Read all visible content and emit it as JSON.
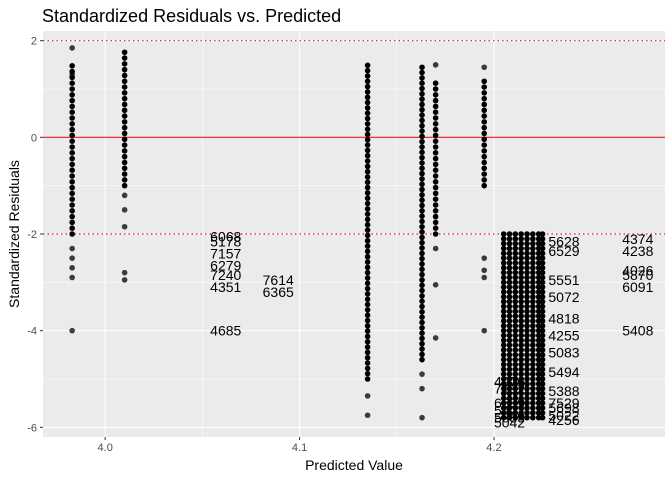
{
  "chart_data": {
    "type": "scatter",
    "title": "Standardized Residuals vs. Predicted",
    "xlabel": "Predicted Value",
    "ylabel": "Standardized Residuals",
    "xlim": [
      3.968,
      4.288
    ],
    "ylim": [
      -6.2,
      2.2
    ],
    "xticks": [
      {
        "value": 4.0,
        "label": "4.0"
      },
      {
        "value": 4.1,
        "label": "4.1"
      },
      {
        "value": 4.2,
        "label": "4.2"
      }
    ],
    "yticks": [
      {
        "value": 2,
        "label": "2"
      },
      {
        "value": 0,
        "label": "0"
      },
      {
        "value": -2,
        "label": "-2"
      },
      {
        "value": -4,
        "label": "-4"
      },
      {
        "value": -6,
        "label": "-6"
      }
    ],
    "reference_lines": [
      {
        "y": 0,
        "style": "solid",
        "color": "#e41a1c"
      },
      {
        "y": 2,
        "style": "dotted",
        "color": "#e41a1c"
      },
      {
        "y": -2,
        "style": "dotted",
        "color": "#e41a1c"
      }
    ],
    "point_color": "#000000",
    "panel_background": "#ebebeb",
    "grid_color": "#ffffff",
    "columns": [
      {
        "x": 3.983,
        "dense": [
          -2.0,
          1.5
        ],
        "step": 0.12,
        "sparse": [
          -2.3,
          -2.5,
          -2.7,
          -2.9,
          -4.0,
          1.85,
          1.3
        ]
      },
      {
        "x": 4.01,
        "dense": [
          -1.0,
          1.8
        ],
        "step": 0.12,
        "sparse": [
          -1.2,
          -1.5,
          -1.85,
          -2.8,
          -2.95
        ]
      },
      {
        "x": 4.135,
        "dense": [
          -5.0,
          1.55
        ],
        "step": 0.11,
        "sparse": [
          -5.35,
          -5.75
        ]
      },
      {
        "x": 4.163,
        "dense": [
          -4.6,
          1.5
        ],
        "step": 0.11,
        "sparse": [
          -4.9,
          -5.2,
          -5.8
        ]
      },
      {
        "x": 4.17,
        "dense": [
          -2.0,
          1.2
        ],
        "step": 0.12,
        "sparse": [
          -2.3,
          -3.05,
          -4.15,
          1.5
        ]
      },
      {
        "x": 4.195,
        "dense": [
          -1.0,
          1.25
        ],
        "step": 0.12,
        "sparse": [
          -2.5,
          -2.75,
          -2.9,
          -4.0,
          1.45
        ]
      },
      {
        "x": 4.205,
        "dense": [
          -5.8,
          -2.0
        ],
        "step": 0.1,
        "sparse": []
      },
      {
        "x": 4.208,
        "dense": [
          -5.8,
          -2.0
        ],
        "step": 0.1,
        "sparse": []
      },
      {
        "x": 4.211,
        "dense": [
          -5.8,
          -2.0
        ],
        "step": 0.1,
        "sparse": []
      },
      {
        "x": 4.214,
        "dense": [
          -5.8,
          -2.0
        ],
        "step": 0.1,
        "sparse": []
      },
      {
        "x": 4.217,
        "dense": [
          -5.8,
          -2.0
        ],
        "step": 0.1,
        "sparse": []
      },
      {
        "x": 4.22,
        "dense": [
          -5.8,
          -2.0
        ],
        "step": 0.1,
        "sparse": []
      },
      {
        "x": 4.223,
        "dense": [
          -5.8,
          -2.0
        ],
        "step": 0.1,
        "sparse": []
      },
      {
        "x": 4.225,
        "dense": [
          -5.8,
          -2.0
        ],
        "step": 0.1,
        "sparse": []
      }
    ],
    "point_labels": [
      {
        "x": 4.054,
        "y": -2.05,
        "text": "6068"
      },
      {
        "x": 4.054,
        "y": -2.15,
        "text": "5178"
      },
      {
        "x": 4.054,
        "y": -2.4,
        "text": "7157"
      },
      {
        "x": 4.054,
        "y": -2.65,
        "text": "6279"
      },
      {
        "x": 4.054,
        "y": -2.85,
        "text": "7240"
      },
      {
        "x": 4.054,
        "y": -3.1,
        "text": "4351"
      },
      {
        "x": 4.054,
        "y": -4.0,
        "text": "4685"
      },
      {
        "x": 4.081,
        "y": -2.95,
        "text": "7614"
      },
      {
        "x": 4.081,
        "y": -3.2,
        "text": "6365"
      },
      {
        "x": 4.228,
        "y": -2.15,
        "text": "5628"
      },
      {
        "x": 4.228,
        "y": -2.35,
        "text": "6529"
      },
      {
        "x": 4.228,
        "y": -2.95,
        "text": "5551"
      },
      {
        "x": 4.228,
        "y": -3.3,
        "text": "5072"
      },
      {
        "x": 4.228,
        "y": -3.75,
        "text": "4818"
      },
      {
        "x": 4.228,
        "y": -4.1,
        "text": "4255"
      },
      {
        "x": 4.228,
        "y": -4.45,
        "text": "5083"
      },
      {
        "x": 4.228,
        "y": -4.85,
        "text": "5494"
      },
      {
        "x": 4.228,
        "y": -5.25,
        "text": "5388"
      },
      {
        "x": 4.228,
        "y": -5.5,
        "text": "7529"
      },
      {
        "x": 4.228,
        "y": -5.85,
        "text": "4256"
      },
      {
        "x": 4.228,
        "y": -5.75,
        "text": "5022"
      },
      {
        "x": 4.228,
        "y": -5.6,
        "text": "5698"
      },
      {
        "x": 4.2,
        "y": -5.65,
        "text": "5422"
      },
      {
        "x": 4.2,
        "y": -5.9,
        "text": "5042"
      },
      {
        "x": 4.2,
        "y": -5.2,
        "text": "7192"
      },
      {
        "x": 4.2,
        "y": -5.05,
        "text": "4976"
      },
      {
        "x": 4.2,
        "y": -5.5,
        "text": "6689"
      },
      {
        "x": 4.2,
        "y": -5.8,
        "text": "5889"
      },
      {
        "x": 4.266,
        "y": -2.1,
        "text": "4374"
      },
      {
        "x": 4.266,
        "y": -2.35,
        "text": "4238"
      },
      {
        "x": 4.266,
        "y": -2.75,
        "text": "4026"
      },
      {
        "x": 4.266,
        "y": -2.85,
        "text": "5870"
      },
      {
        "x": 4.266,
        "y": -3.1,
        "text": "6091"
      },
      {
        "x": 4.266,
        "y": -4.0,
        "text": "5408"
      }
    ]
  }
}
